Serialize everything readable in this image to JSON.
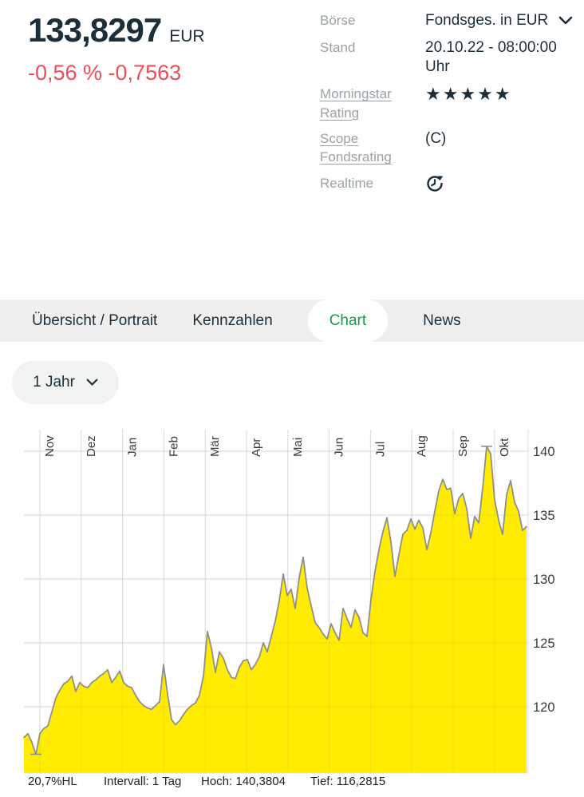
{
  "header": {
    "price": "133,8297",
    "currency": "EUR",
    "change": "-0,56 % -0,7563",
    "info_rows": [
      {
        "label": "Börse",
        "value": "Fondsges. in EUR",
        "icon": "chevron-down-icon"
      },
      {
        "label": "Stand",
        "value": "20.10.22 - 08:00:00 Uhr"
      },
      {
        "label": "Morningstar Rating",
        "stars": 5,
        "stars_text": "★★★★★"
      },
      {
        "label": "Scope Fondsrating",
        "value": "(C)"
      },
      {
        "label": "Realtime",
        "icon": "refresh-clock-icon"
      }
    ]
  },
  "tabs": [
    {
      "label": "Übersicht / Portrait",
      "active": false
    },
    {
      "label": "Kennzahlen",
      "active": false
    },
    {
      "label": "Chart",
      "active": true
    },
    {
      "label": "News",
      "active": false
    }
  ],
  "period_selector": {
    "value": "1 Jahr",
    "icon": "chevron-down-icon"
  },
  "chart_data": {
    "type": "area",
    "title": "",
    "xlabel": "",
    "ylabel": "",
    "x_axis": {
      "labels": [
        "Nov",
        "Dez",
        "Jan",
        "Feb",
        "Mär",
        "Apr",
        "Mai",
        "Jun",
        "Jul",
        "Aug",
        "Sep",
        "Okt"
      ],
      "label_rotation": -90
    },
    "y_axis": {
      "ticks": [
        120,
        125,
        130,
        135,
        140
      ],
      "side": "right"
    },
    "ylim": [
      114.81,
      141.56
    ],
    "grid": true,
    "series": [
      {
        "name": "Kurs in EUR, Intervall 1 Tag",
        "values": [
          117.6,
          117.9,
          117.2,
          116.28,
          117.9,
          118.3,
          118.5,
          119.6,
          120.7,
          121.3,
          121.8,
          122.0,
          122.4,
          121.2,
          121.9,
          121.6,
          121.5,
          121.9,
          122.1,
          122.4,
          122.6,
          122.9,
          121.9,
          122.3,
          122.8,
          121.9,
          121.6,
          121.5,
          120.9,
          120.4,
          120.1,
          119.9,
          119.8,
          120.1,
          120.4,
          123.3,
          121.0,
          119.0,
          118.6,
          118.9,
          119.4,
          119.8,
          120.1,
          120.3,
          120.9,
          122.4,
          125.9,
          124.6,
          122.7,
          124.3,
          123.8,
          122.9,
          122.3,
          122.2,
          123.1,
          123.6,
          123.7,
          122.9,
          123.3,
          123.9,
          125.0,
          124.3,
          125.5,
          126.7,
          128.3,
          130.4,
          128.7,
          129.2,
          127.7,
          130.1,
          131.7,
          129.3,
          127.9,
          126.6,
          126.2,
          125.7,
          125.3,
          126.5,
          125.8,
          125.2,
          127.7,
          126.9,
          126.2,
          127.6,
          127.0,
          125.8,
          125.5,
          128.4,
          130.6,
          132.3,
          133.7,
          134.8,
          132.9,
          130.2,
          131.9,
          133.5,
          133.8,
          134.7,
          133.9,
          134.6,
          134.0,
          132.3,
          133.6,
          135.3,
          136.9,
          137.8,
          137.0,
          137.1,
          135.1,
          136.3,
          136.7,
          135.5,
          133.2,
          134.9,
          134.4,
          137.1,
          140.38,
          139.8,
          136.2,
          134.6,
          133.5,
          136.6,
          137.7,
          136.0,
          135.3,
          133.8,
          134.1
        ]
      }
    ],
    "high_marker": {
      "index": 116,
      "value": 140.3804
    },
    "low_marker": {
      "index": 3,
      "value": 116.2815
    },
    "colors": {
      "fill": "#ffec00",
      "line": "#8f8f8f",
      "grid": "#e7e7e7",
      "tick_text": "#3a3a3a"
    },
    "legend": "off"
  },
  "footer": {
    "stats": [
      "20,7%HL",
      "Intervall: 1 Tag",
      "Hoch: 140,3804",
      "Tief: 116,2815"
    ]
  },
  "colors": {
    "accent_green": "#1a9a46",
    "price_navy": "#1c2e3a",
    "change_red": "#ee4c56",
    "label_gray": "#9aa1a5",
    "chart_yellow": "#ffec00"
  }
}
